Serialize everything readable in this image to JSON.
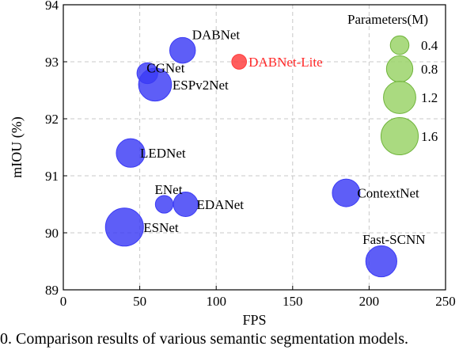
{
  "chart_data": {
    "type": "scatter",
    "xlabel": "FPS",
    "ylabel": "mIOU (%)",
    "xlim": [
      0,
      250
    ],
    "ylim": [
      89,
      94
    ],
    "xticks": [
      0,
      50,
      100,
      150,
      200,
      250
    ],
    "yticks": [
      89,
      90,
      91,
      92,
      93,
      94
    ],
    "grid": "dashed",
    "points": [
      {
        "label": "DABNet",
        "fps": 78,
        "miou": 93.2,
        "params": 0.76,
        "color": "#3b3bf5"
      },
      {
        "label": "DABNet-Lite",
        "fps": 115,
        "miou": 93.0,
        "params": 0.25,
        "color": "#ff3b3b"
      },
      {
        "label": "CGNet",
        "fps": 55,
        "miou": 92.8,
        "params": 0.5,
        "color": "#3b3bf5"
      },
      {
        "label": "ESPv2Net",
        "fps": 60,
        "miou": 92.6,
        "params": 1.25,
        "color": "#3b3bf5"
      },
      {
        "label": "LEDNet",
        "fps": 44,
        "miou": 91.4,
        "params": 0.94,
        "color": "#3b3bf5"
      },
      {
        "label": "ENet",
        "fps": 66,
        "miou": 90.5,
        "params": 0.36,
        "color": "#3b3bf5"
      },
      {
        "label": "EDANet",
        "fps": 80,
        "miou": 90.5,
        "params": 0.69,
        "color": "#3b3bf5"
      },
      {
        "label": "ESNet",
        "fps": 40,
        "miou": 90.1,
        "params": 1.66,
        "color": "#3b3bf5"
      },
      {
        "label": "ContextNet",
        "fps": 185,
        "miou": 90.7,
        "params": 0.88,
        "color": "#3b3bf5"
      },
      {
        "label": "Fast-SCNN",
        "fps": 208,
        "miou": 89.5,
        "params": 1.11,
        "color": "#3b3bf5"
      }
    ],
    "legend": {
      "title": "Parameters(M)",
      "placement": "top-right",
      "color": "#9bd46a",
      "edge_color": "#6fb43a",
      "entries": [
        {
          "label": "0.4",
          "params": 0.4
        },
        {
          "label": "0.8",
          "params": 0.8
        },
        {
          "label": "1.2",
          "params": 1.2
        },
        {
          "label": "1.6",
          "params": 1.6
        }
      ]
    }
  },
  "caption": "0.  Comparison results of various semantic segmentation models."
}
